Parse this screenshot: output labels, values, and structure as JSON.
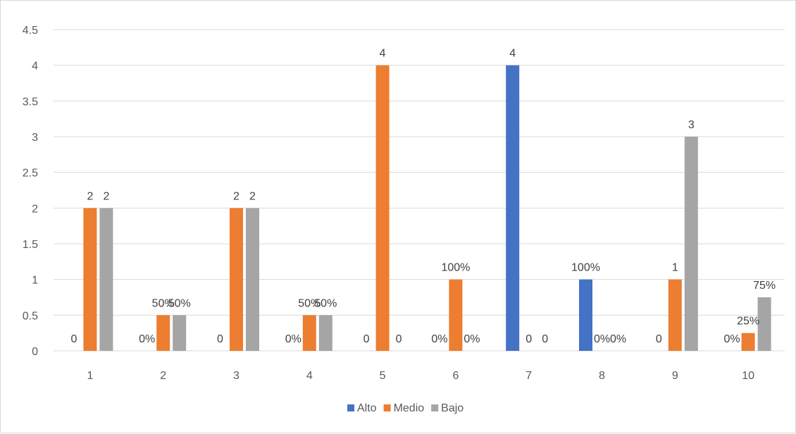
{
  "chart_data": {
    "type": "bar",
    "categories": [
      "1",
      "2",
      "3",
      "4",
      "5",
      "6",
      "7",
      "8",
      "9",
      "10"
    ],
    "series": [
      {
        "name": "Alto",
        "color": "#4472C4",
        "values": [
          0,
          0,
          0,
          0,
          0,
          0,
          4,
          1,
          0,
          0
        ],
        "labels": [
          "0",
          "0%",
          "0",
          "0%",
          "0",
          "0%",
          "4",
          "100%",
          "0",
          "0%"
        ]
      },
      {
        "name": "Medio",
        "color": "#ED7D31",
        "values": [
          2,
          0.5,
          2,
          0.5,
          4,
          1,
          0,
          0,
          1,
          0.25
        ],
        "labels": [
          "2",
          "50%",
          "2",
          "50%",
          "4",
          "100%",
          "0",
          "0%",
          "1",
          "25%"
        ]
      },
      {
        "name": "Bajo",
        "color": "#A5A5A5",
        "values": [
          2,
          0.5,
          2,
          0.5,
          0,
          0,
          0,
          0,
          3,
          0.75
        ],
        "labels": [
          "2",
          "50%",
          "2",
          "50%",
          "0",
          "0%",
          "0",
          "0%",
          "3",
          "75%"
        ]
      }
    ],
    "yticks": [
      "0",
      "0.5",
      "1",
      "1.5",
      "2",
      "2.5",
      "3",
      "3.5",
      "4",
      "4.5"
    ],
    "ylim": [
      0,
      4.5
    ],
    "grid": true,
    "legend_position": "bottom"
  }
}
